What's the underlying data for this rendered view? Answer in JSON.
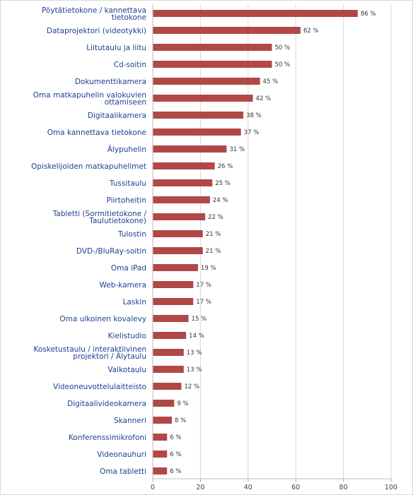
{
  "chart_data": {
    "type": "bar",
    "orientation": "horizontal",
    "categories": [
      "Pöytätietokone / kannettava tietokone",
      "Dataprojektori (videotykki)",
      "Liitutaulu ja liitu",
      "Cd-soitin",
      "Dokumenttikamera",
      "Oma matkapuhelin valokuvien ottamiseen",
      "Digitaalikamera",
      "Oma kannettava tietokone",
      "Älypuhelin",
      "Opiskelijoiden matkapuhelimet",
      "Tussitaulu",
      "Piirtoheitin",
      "Tabletti (Sormitietokone / Taulutietokone)",
      "Tulostin",
      "DVD-/BluRay-soitin",
      "Oma iPad",
      "Web-kamera",
      "Laskin",
      "Oma ulkoinen kovalevy",
      "Kielistudio",
      "Kosketustaulu / interaktiivinen projektori / Älytaulu",
      "Valkotaulu",
      "Videoneuvottelulaitteisto",
      "Digitaalivideokamera",
      "Skanneri",
      "Konferenssimikrofoni",
      "Videonauhuri",
      "Oma tabletti"
    ],
    "values": [
      86,
      62,
      50,
      50,
      45,
      42,
      38,
      37,
      31,
      26,
      25,
      24,
      22,
      21,
      21,
      19,
      17,
      17,
      15,
      14,
      13,
      13,
      12,
      9,
      8,
      6,
      6,
      6
    ],
    "value_labels": [
      "86 %",
      "62 %",
      "50 %",
      "50 %",
      "45 %",
      "42 %",
      "38 %",
      "37 %",
      "31 %",
      "26 %",
      "25 %",
      "24 %",
      "22 %",
      "21 %",
      "21 %",
      "19 %",
      "17 %",
      "17 %",
      "15 %",
      "14 %",
      "13 %",
      "13 %",
      "12 %",
      "9 %",
      "8 %",
      "6 %",
      "6 %",
      "6 %"
    ],
    "label_lines": [
      [
        "Pöytätietokone / kannettava",
        "tietokone"
      ],
      [
        "Dataprojektori (videotykki)"
      ],
      [
        "Liitutaulu ja liitu"
      ],
      [
        "Cd-soitin"
      ],
      [
        "Dokumenttikamera"
      ],
      [
        "Oma matkapuhelin valokuvien",
        "ottamiseen"
      ],
      [
        "Digitaalikamera"
      ],
      [
        "Oma kannettava tietokone"
      ],
      [
        "Älypuhelin"
      ],
      [
        "Opiskelijoiden matkapuhelimet"
      ],
      [
        "Tussitaulu"
      ],
      [
        "Piirtoheitin"
      ],
      [
        "Tabletti (Sormitietokone /",
        "Taulutietokone)"
      ],
      [
        "Tulostin"
      ],
      [
        "DVD-/BluRay-soitin"
      ],
      [
        "Oma iPad"
      ],
      [
        "Web-kamera"
      ],
      [
        "Laskin"
      ],
      [
        "Oma ulkoinen kovalevy"
      ],
      [
        "Kielistudio"
      ],
      [
        "Kosketustaulu / interaktiivinen",
        "projektori / Älytaulu"
      ],
      [
        "Valkotaulu"
      ],
      [
        "Videoneuvottelulaitteisto"
      ],
      [
        "Digitaalivideokamera"
      ],
      [
        "Skanneri"
      ],
      [
        "Konferenssimikrofoni"
      ],
      [
        "Videonauhuri"
      ],
      [
        "Oma tabletti"
      ]
    ],
    "xlim": [
      0,
      100
    ],
    "xticks": [
      0,
      20,
      40,
      60,
      80,
      100
    ],
    "grid": true,
    "bar_color": "#b04848",
    "label_color": "#1f3f8f",
    "title": "",
    "xlabel": "",
    "ylabel": ""
  }
}
